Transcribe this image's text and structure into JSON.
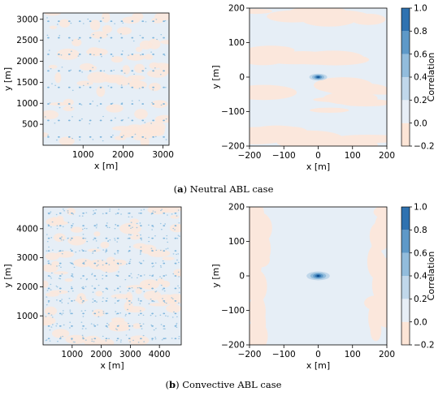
{
  "captions": {
    "a": {
      "letter": "a",
      "text": "Neutral ABL case"
    },
    "b": {
      "letter": "b",
      "text": "Convective ABL case"
    }
  },
  "colors": {
    "bg_blue": "#e6eef6",
    "bg_peach": "#fbe7dc",
    "dot": "#7fb6dd",
    "levels": [
      "#fde5d6",
      "#e7eef6",
      "#c0d7ea",
      "#92bcdc",
      "#5e99c8",
      "#2f72b0",
      "#0b4a8e"
    ]
  },
  "chart_data": [
    {
      "type": "heatmap",
      "panel": "neutral-field",
      "xlabel": "x [m]",
      "ylabel": "y [m]",
      "xlim": [
        0,
        3150
      ],
      "ylim": [
        0,
        3150
      ],
      "xticks": [
        1000,
        2000,
        3000
      ],
      "yticks": [
        500,
        1000,
        1500,
        2000,
        2500,
        3000
      ],
      "grid_rows": 8,
      "grid_cols": 12
    },
    {
      "type": "heatmap",
      "panel": "neutral-correlation",
      "xlabel": "x [m]",
      "ylabel": "y [m]",
      "xlim": [
        -200,
        200
      ],
      "ylim": [
        -200,
        200
      ],
      "xticks": [
        -200,
        -100,
        0,
        100,
        200
      ],
      "yticks": [
        -200,
        -100,
        0,
        100,
        200
      ],
      "peak": {
        "x": 0,
        "y": 0,
        "value": 1.0
      },
      "colorbar": {
        "label": "Correlation",
        "levels": [
          -0.2,
          0.0,
          0.2,
          0.4,
          0.6,
          0.8,
          1.0
        ],
        "ticks": [
          "-0.2",
          "0.0",
          "0.2",
          "0.4",
          "0.6",
          "0.8",
          "1.0"
        ]
      }
    },
    {
      "type": "heatmap",
      "panel": "convective-field",
      "xlabel": "x [m]",
      "ylabel": "y [m]",
      "xlim": [
        0,
        4750
      ],
      "ylim": [
        0,
        4750
      ],
      "xticks": [
        1000,
        2000,
        3000,
        4000
      ],
      "yticks": [
        1000,
        2000,
        3000,
        4000
      ],
      "grid_rows": 11,
      "grid_cols": 12
    },
    {
      "type": "heatmap",
      "panel": "convective-correlation",
      "xlabel": "x [m]",
      "ylabel": "y [m]",
      "xlim": [
        -200,
        200
      ],
      "ylim": [
        -200,
        200
      ],
      "xticks": [
        -200,
        -100,
        0,
        100,
        200
      ],
      "yticks": [
        -200,
        -100,
        0,
        100,
        200
      ],
      "peak": {
        "x": 0,
        "y": 0,
        "value": 1.0
      },
      "colorbar": {
        "label": "Correlation",
        "levels": [
          -0.2,
          0.0,
          0.2,
          0.4,
          0.6,
          0.8,
          1.0
        ],
        "ticks": [
          "-0.2",
          "0.0",
          "0.2",
          "0.4",
          "0.6",
          "0.8",
          "1.0"
        ]
      }
    }
  ]
}
